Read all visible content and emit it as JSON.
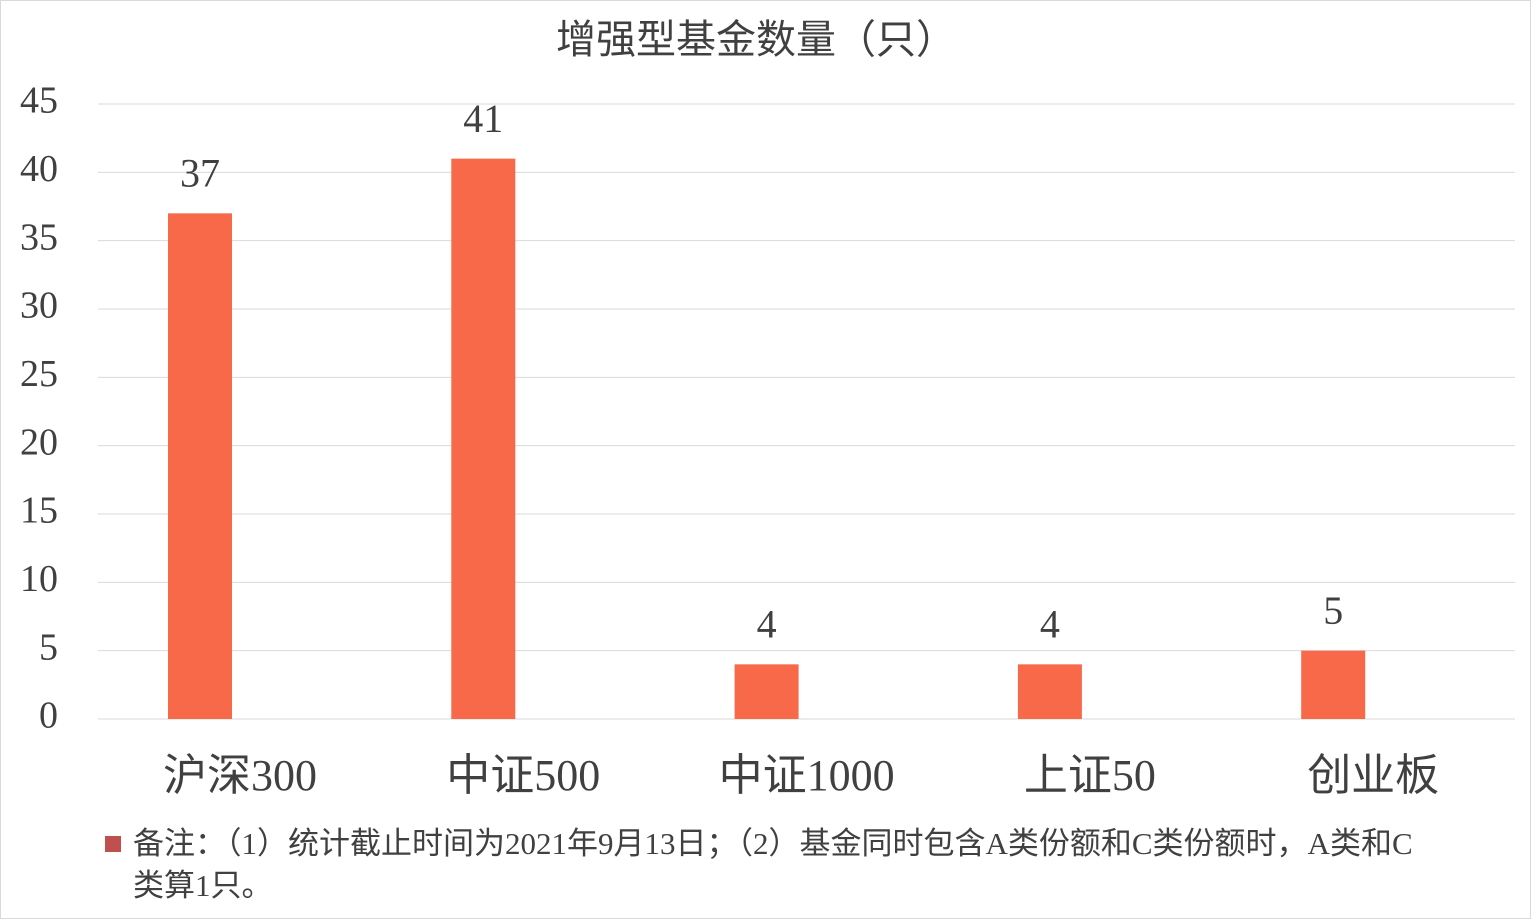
{
  "chart_data": {
    "type": "bar",
    "title": "增强型基金数量（只）",
    "categories": [
      "沪深300",
      "中证500",
      "中证1000",
      "上证50",
      "创业板"
    ],
    "values": [
      37,
      41,
      4,
      4,
      5
    ],
    "color": "#f8694a",
    "ylim": [
      0,
      45
    ],
    "yticks": [
      0,
      5,
      10,
      15,
      20,
      25,
      30,
      35,
      40,
      45
    ],
    "grid": true,
    "note": "备注：（1）统计截止时间为2021年9月13日；（2）基金同时包含A类份额和C类份额时，A类和C类算1只。",
    "note_color": "#c0504d"
  }
}
